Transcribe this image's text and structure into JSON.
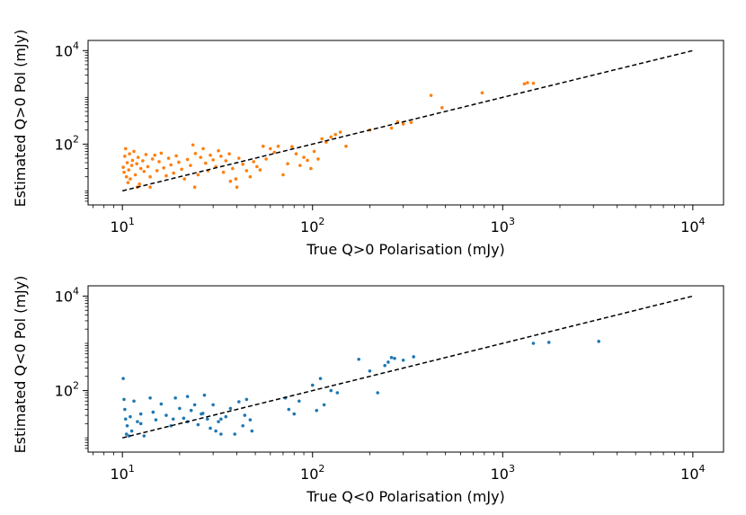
{
  "chart_data": [
    {
      "type": "scatter",
      "xscale": "log",
      "yscale": "log",
      "xlim": [
        6.6,
        14500
      ],
      "ylim": [
        5,
        16500
      ],
      "xlabel": "True Q>0 Polarisation (mJy)",
      "ylabel": "Estimated Q>0 Pol (mJy)",
      "xticks": [
        {
          "value": 10,
          "base": "10",
          "exp": "1"
        },
        {
          "value": 100,
          "base": "10",
          "exp": "2"
        },
        {
          "value": 1000,
          "base": "10",
          "exp": "3"
        },
        {
          "value": 10000,
          "base": "10",
          "exp": "4"
        }
      ],
      "yticks": [
        {
          "value": 100,
          "base": "10",
          "exp": "2"
        },
        {
          "value": 10000,
          "base": "10",
          "exp": "4"
        }
      ],
      "reference_line": {
        "x": [
          10,
          10000
        ],
        "y": [
          10,
          10000
        ],
        "style": "dashed",
        "color": "#000000"
      },
      "series": [
        {
          "name": "Q>0",
          "color": "#ff7f0e",
          "points": [
            [
              10.1,
              32
            ],
            [
              10.2,
              25
            ],
            [
              10.3,
              55
            ],
            [
              10.4,
              80
            ],
            [
              10.5,
              20
            ],
            [
              10.6,
              40
            ],
            [
              10.7,
              15
            ],
            [
              10.8,
              28
            ],
            [
              10.9,
              62
            ],
            [
              11.0,
              18
            ],
            [
              11.2,
              35
            ],
            [
              11.3,
              45
            ],
            [
              11.5,
              70
            ],
            [
              11.7,
              22
            ],
            [
              11.9,
              38
            ],
            [
              12.1,
              52
            ],
            [
              12.3,
              14
            ],
            [
              12.5,
              30
            ],
            [
              12.8,
              44
            ],
            [
              13.0,
              26
            ],
            [
              13.3,
              60
            ],
            [
              13.6,
              33
            ],
            [
              14.0,
              20
            ],
            [
              14.4,
              48
            ],
            [
              14.8,
              58
            ],
            [
              15.2,
              27
            ],
            [
              15.6,
              42
            ],
            [
              16.0,
              64
            ],
            [
              16.5,
              31
            ],
            [
              17.0,
              21
            ],
            [
              17.5,
              50
            ],
            [
              18.0,
              36
            ],
            [
              18.6,
              24
            ],
            [
              19.2,
              56
            ],
            [
              19.8,
              41
            ],
            [
              20.5,
              29
            ],
            [
              21.2,
              18
            ],
            [
              22.0,
              47
            ],
            [
              22.8,
              35
            ],
            [
              23.5,
              96
            ],
            [
              24.2,
              63
            ],
            [
              25.0,
              22
            ],
            [
              25.8,
              52
            ],
            [
              26.6,
              80
            ],
            [
              27.4,
              39
            ],
            [
              28.2,
              27
            ],
            [
              29.0,
              58
            ],
            [
              30.0,
              46
            ],
            [
              31.0,
              33
            ],
            [
              32.0,
              72
            ],
            [
              33.0,
              55
            ],
            [
              34.0,
              25
            ],
            [
              35.0,
              44
            ],
            [
              36.5,
              62
            ],
            [
              38.0,
              30
            ],
            [
              39.5,
              18
            ],
            [
              41.0,
              50
            ],
            [
              43.0,
              37
            ],
            [
              45.0,
              27
            ],
            [
              47.0,
              20
            ],
            [
              49.0,
              42
            ],
            [
              51.0,
              33
            ],
            [
              53.0,
              28
            ],
            [
              55.0,
              90
            ],
            [
              57.0,
              48
            ],
            [
              60.0,
              80
            ],
            [
              63.0,
              67
            ],
            [
              66.0,
              90
            ],
            [
              70.0,
              22
            ],
            [
              74.0,
              38
            ],
            [
              78.0,
              88
            ],
            [
              82.0,
              62
            ],
            [
              86.0,
              35
            ],
            [
              90.0,
              52
            ],
            [
              94.0,
              45
            ],
            [
              98.0,
              30
            ],
            [
              102.0,
              70
            ],
            [
              107.0,
              48
            ],
            [
              112.0,
              130
            ],
            [
              118.0,
              110
            ],
            [
              125.0,
              142
            ],
            [
              132.0,
              160
            ],
            [
              140.0,
              180
            ],
            [
              150.0,
              90
            ],
            [
              200.0,
              200
            ],
            [
              260.0,
              220
            ],
            [
              280.0,
              300
            ],
            [
              300.0,
              270
            ],
            [
              330.0,
              290
            ],
            [
              420.0,
              1100
            ],
            [
              480.0,
              600
            ],
            [
              780.0,
              1250
            ],
            [
              1300.0,
              1950
            ],
            [
              1350.0,
              2050
            ],
            [
              1450.0,
              2000
            ],
            [
              24.0,
              12
            ],
            [
              40.0,
              12
            ],
            [
              14.0,
              12
            ],
            [
              12.0,
              12
            ],
            [
              37.0,
              16
            ]
          ]
        }
      ]
    },
    {
      "type": "scatter",
      "xscale": "log",
      "yscale": "log",
      "xlim": [
        6.6,
        14500
      ],
      "ylim": [
        5,
        16500
      ],
      "xlabel": "True Q<0 Polarisation (mJy)",
      "ylabel": "Estimated Q<0 Pol (mJy)",
      "xticks": [
        {
          "value": 10,
          "base": "10",
          "exp": "1"
        },
        {
          "value": 100,
          "base": "10",
          "exp": "2"
        },
        {
          "value": 1000,
          "base": "10",
          "exp": "3"
        },
        {
          "value": 10000,
          "base": "10",
          "exp": "4"
        }
      ],
      "yticks": [
        {
          "value": 100,
          "base": "10",
          "exp": "2"
        },
        {
          "value": 10000,
          "base": "10",
          "exp": "4"
        }
      ],
      "reference_line": {
        "x": [
          10,
          10000
        ],
        "y": [
          10,
          10000
        ],
        "style": "dashed",
        "color": "#000000"
      },
      "series": [
        {
          "name": "Q<0",
          "color": "#1f77b4",
          "points": [
            [
              10.1,
              180
            ],
            [
              10.2,
              65
            ],
            [
              10.3,
              40
            ],
            [
              10.4,
              25
            ],
            [
              10.5,
              12
            ],
            [
              10.6,
              18
            ],
            [
              10.8,
              11
            ],
            [
              11.0,
              28
            ],
            [
              11.2,
              14
            ],
            [
              11.5,
              60
            ],
            [
              12.0,
              22
            ],
            [
              12.5,
              32
            ],
            [
              13.0,
              11
            ],
            [
              14.0,
              70
            ],
            [
              14.5,
              35
            ],
            [
              15.0,
              24
            ],
            [
              16.0,
              52
            ],
            [
              17.0,
              30
            ],
            [
              18.0,
              18
            ],
            [
              19.0,
              70
            ],
            [
              20.0,
              42
            ],
            [
              21.0,
              26
            ],
            [
              22.0,
              75
            ],
            [
              23.0,
              38
            ],
            [
              24.0,
              50
            ],
            [
              25.0,
              19
            ],
            [
              26.0,
              32
            ],
            [
              27.0,
              80
            ],
            [
              28.0,
              25
            ],
            [
              29.0,
              16
            ],
            [
              30.0,
              50
            ],
            [
              31.0,
              14
            ],
            [
              32.0,
              22
            ],
            [
              33.0,
              12
            ],
            [
              35.0,
              28
            ],
            [
              37.0,
              42
            ],
            [
              39.0,
              12
            ],
            [
              41.0,
              58
            ],
            [
              43.0,
              18
            ],
            [
              45.0,
              65
            ],
            [
              47.0,
              24
            ],
            [
              48.0,
              14
            ],
            [
              72.0,
              70
            ],
            [
              75.0,
              40
            ],
            [
              80.0,
              32
            ],
            [
              85.0,
              60
            ],
            [
              100.0,
              130
            ],
            [
              105.0,
              38
            ],
            [
              110.0,
              180
            ],
            [
              115.0,
              50
            ],
            [
              125.0,
              100
            ],
            [
              135.0,
              90
            ],
            [
              175.0,
              460
            ],
            [
              200.0,
              260
            ],
            [
              220.0,
              90
            ],
            [
              240.0,
              340
            ],
            [
              250.0,
              400
            ],
            [
              260.0,
              500
            ],
            [
              270.0,
              480
            ],
            [
              300.0,
              440
            ],
            [
              340.0,
              520
            ],
            [
              1450.0,
              1000
            ],
            [
              1750.0,
              1050
            ],
            [
              3200.0,
              1100
            ],
            [
              22.0,
              22
            ],
            [
              26.5,
              33
            ],
            [
              44.0,
              30
            ],
            [
              33.0,
              25
            ],
            [
              12.5,
              20
            ],
            [
              18.5,
              25
            ]
          ]
        }
      ]
    }
  ]
}
